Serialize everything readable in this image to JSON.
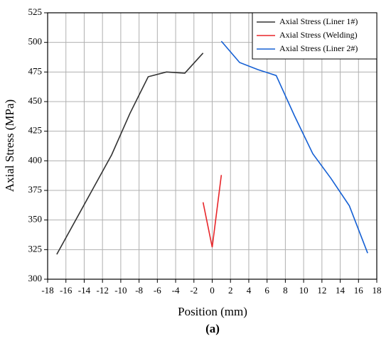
{
  "chart_data": {
    "type": "line",
    "x_label": "Position (mm)",
    "y_label": "Axial Stress (MPa)",
    "caption": "(a)",
    "xlim": [
      -18,
      18
    ],
    "xticks": [
      -18,
      -16,
      -14,
      -12,
      -10,
      -8,
      -6,
      -4,
      -2,
      0,
      2,
      4,
      6,
      8,
      10,
      12,
      14,
      16,
      18
    ],
    "ylim": [
      300,
      525
    ],
    "yticks": [
      300,
      325,
      350,
      375,
      400,
      425,
      450,
      475,
      500,
      525
    ],
    "grid": true,
    "legend": "top-right",
    "series": [
      {
        "name": "Axial Stress (Liner 1#)",
        "color": "#333333",
        "x": [
          -17,
          -11,
          -9,
          -7,
          -5,
          -3,
          -1
        ],
        "values": [
          321,
          405,
          440,
          471,
          475,
          474,
          491
        ]
      },
      {
        "name": "Axial Stress (Welding)",
        "color": "#e8262a",
        "x": [
          -1,
          0,
          1
        ],
        "values": [
          365,
          327,
          388
        ]
      },
      {
        "name": "Axial Stress (Liner 2#)",
        "color": "#1560d4",
        "x": [
          1,
          3,
          5,
          7,
          9,
          11,
          13,
          15,
          17
        ],
        "values": [
          501,
          483,
          477,
          472,
          438,
          406,
          385,
          362,
          322
        ]
      }
    ]
  }
}
